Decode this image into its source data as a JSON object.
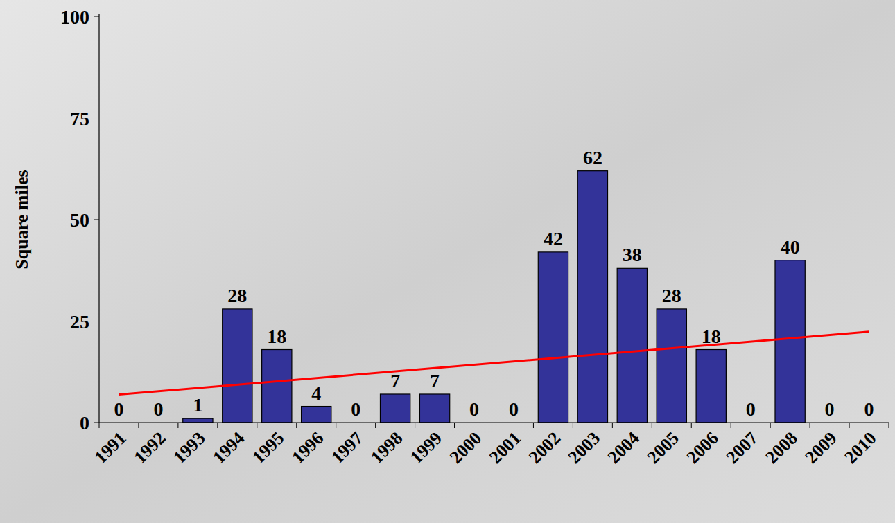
{
  "chart_data": {
    "type": "bar",
    "y_label": "Square miles",
    "categories": [
      "1991",
      "1992",
      "1993",
      "1994",
      "1995",
      "1996",
      "1997",
      "1998",
      "1999",
      "2000",
      "2001",
      "2002",
      "2003",
      "2004",
      "2005",
      "2006",
      "2007",
      "2008",
      "2009",
      "2010"
    ],
    "values": [
      0,
      0,
      1,
      28,
      18,
      4,
      0,
      7,
      7,
      0,
      0,
      42,
      62,
      38,
      28,
      18,
      0,
      40,
      0,
      0
    ],
    "color": "#333399",
    "data_labels": true,
    "ylim": [
      0,
      100
    ],
    "yticks": [
      0,
      25,
      50,
      75,
      100
    ],
    "grid": false,
    "trendline": {
      "type": "line",
      "color": "#ff0000",
      "x": [
        "1991",
        "2010"
      ],
      "values": [
        6.9,
        22.4
      ]
    }
  }
}
